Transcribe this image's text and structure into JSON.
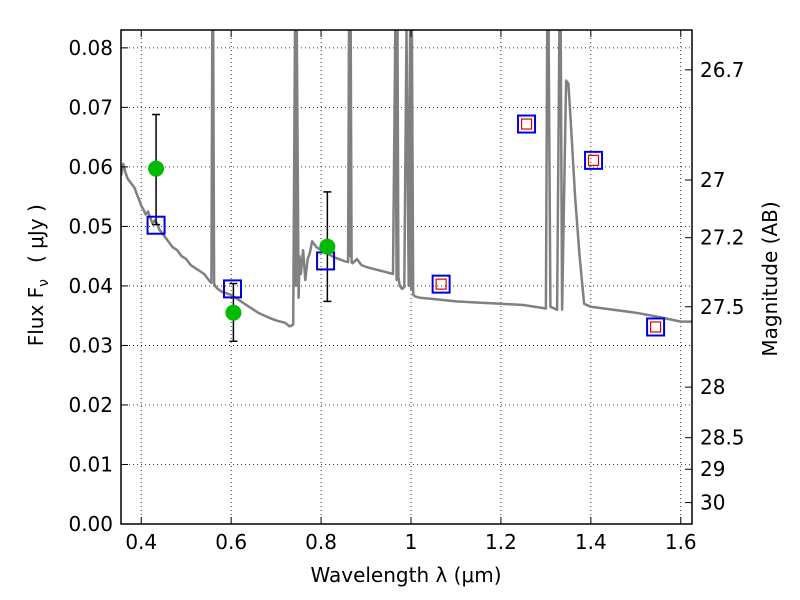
{
  "chart_data": {
    "type": "scatter",
    "xlabel": "Wavelength  λ (μm)",
    "ylabel": "Flux  F",
    "ylabel_sub": "ν",
    "ylabel_unit": "( μJy )",
    "y2label": "Magnitude (AB)",
    "xlim": [
      0.355,
      1.625
    ],
    "ylim": [
      0.0,
      0.083
    ],
    "grid": true,
    "x_ticks": [
      0.4,
      0.6,
      0.8,
      1.0,
      1.2,
      1.4,
      1.6
    ],
    "x_tick_labels": [
      "0.4",
      "0.6",
      "0.8",
      "1",
      "1.2",
      "1.4",
      "1.6"
    ],
    "y_ticks": [
      0.0,
      0.01,
      0.02,
      0.03,
      0.04,
      0.05,
      0.06,
      0.07,
      0.08
    ],
    "y_tick_labels": [
      "0.00",
      "0.01",
      "0.02",
      "0.03",
      "0.04",
      "0.05",
      "0.06",
      "0.07",
      "0.08"
    ],
    "mag_ticks": [
      {
        "label": "26.7",
        "flux": 0.0763
      },
      {
        "label": "27",
        "flux": 0.0578
      },
      {
        "label": "27.2",
        "flux": 0.0481
      },
      {
        "label": "27.5",
        "flux": 0.0365
      },
      {
        "label": "28",
        "flux": 0.023
      },
      {
        "label": "28.5",
        "flux": 0.0145
      },
      {
        "label": "29",
        "flux": 0.0092
      },
      {
        "label": "30",
        "flux": 0.0036
      }
    ],
    "colors": {
      "sed": "#808080",
      "observed": "#00bb00",
      "model_box": "#0000dd",
      "model_inner": "#dd0000"
    },
    "sed": {
      "x": [
        0.355,
        0.36,
        0.365,
        0.37,
        0.375,
        0.38,
        0.385,
        0.39,
        0.395,
        0.4,
        0.405,
        0.41,
        0.415,
        0.42,
        0.425,
        0.43,
        0.435,
        0.44,
        0.445,
        0.45,
        0.46,
        0.47,
        0.48,
        0.49,
        0.5,
        0.51,
        0.52,
        0.53,
        0.54,
        0.55,
        0.556,
        0.558,
        0.56,
        0.562,
        0.564,
        0.57,
        0.58,
        0.6,
        0.62,
        0.64,
        0.66,
        0.68,
        0.7,
        0.72,
        0.73,
        0.738,
        0.742,
        0.744,
        0.746,
        0.75,
        0.752,
        0.755,
        0.76,
        0.765,
        0.77,
        0.775,
        0.78,
        0.79,
        0.8,
        0.81,
        0.82,
        0.83,
        0.84,
        0.85,
        0.86,
        0.862,
        0.864,
        0.866,
        0.868,
        0.87,
        0.88,
        0.89,
        0.9,
        0.92,
        0.94,
        0.96,
        0.965,
        0.968,
        0.97,
        0.972,
        0.975,
        0.98,
        0.985,
        0.99,
        0.995,
        0.998,
        1.0,
        1.002,
        1.005,
        1.01,
        1.02,
        1.05,
        1.1,
        1.15,
        1.2,
        1.25,
        1.3,
        1.303,
        1.306,
        1.31,
        1.325,
        1.33,
        1.333,
        1.336,
        1.345,
        1.35,
        1.355,
        1.365,
        1.375,
        1.385,
        1.4,
        1.45,
        1.5,
        1.55,
        1.6,
        1.625
      ],
      "y": [
        0.0585,
        0.0605,
        0.059,
        0.058,
        0.0575,
        0.057,
        0.0565,
        0.0555,
        0.0545,
        0.0535,
        0.0528,
        0.052,
        0.0525,
        0.0515,
        0.0505,
        0.051,
        0.0505,
        0.0495,
        0.049,
        0.0485,
        0.0475,
        0.0465,
        0.046,
        0.045,
        0.0445,
        0.0435,
        0.043,
        0.0425,
        0.042,
        0.041,
        0.0405,
        0.083,
        0.083,
        0.0405,
        0.04,
        0.0395,
        0.039,
        0.0385,
        0.0375,
        0.0365,
        0.0355,
        0.0348,
        0.0342,
        0.0338,
        0.0332,
        0.0335,
        0.083,
        0.04,
        0.083,
        0.038,
        0.045,
        0.042,
        0.046,
        0.041,
        0.0445,
        0.0455,
        0.0475,
        0.0465,
        0.046,
        0.0455,
        0.0452,
        0.0448,
        0.0445,
        0.0442,
        0.044,
        0.083,
        0.045,
        0.083,
        0.044,
        0.0438,
        0.0445,
        0.0435,
        0.0432,
        0.0428,
        0.0424,
        0.042,
        0.083,
        0.041,
        0.083,
        0.0415,
        0.04,
        0.0395,
        0.0398,
        0.083,
        0.04,
        0.083,
        0.0395,
        0.083,
        0.0385,
        0.0382,
        0.038,
        0.0378,
        0.0374,
        0.0372,
        0.037,
        0.0368,
        0.0362,
        0.083,
        0.083,
        0.0365,
        0.036,
        0.083,
        0.083,
        0.036,
        0.0745,
        0.074,
        0.068,
        0.055,
        0.045,
        0.037,
        0.0365,
        0.036,
        0.0355,
        0.0348,
        0.034,
        0.034
      ]
    },
    "observed": [
      {
        "x": 0.433,
        "y": 0.0597,
        "err_low": 0.0503,
        "err_high": 0.0688
      },
      {
        "x": 0.605,
        "y": 0.0355,
        "err_low": 0.0307,
        "err_high": 0.0404
      },
      {
        "x": 0.814,
        "y": 0.0466,
        "err_low": 0.0374,
        "err_high": 0.0558
      }
    ],
    "model": [
      {
        "x": 0.433,
        "y": 0.0502,
        "inner": false
      },
      {
        "x": 0.603,
        "y": 0.0395,
        "inner": false
      },
      {
        "x": 0.81,
        "y": 0.0442,
        "inner": false
      },
      {
        "x": 1.067,
        "y": 0.0403,
        "inner": true
      },
      {
        "x": 1.257,
        "y": 0.0672,
        "inner": true
      },
      {
        "x": 1.406,
        "y": 0.0611,
        "inner": true
      },
      {
        "x": 1.544,
        "y": 0.0331,
        "inner": true
      }
    ]
  }
}
